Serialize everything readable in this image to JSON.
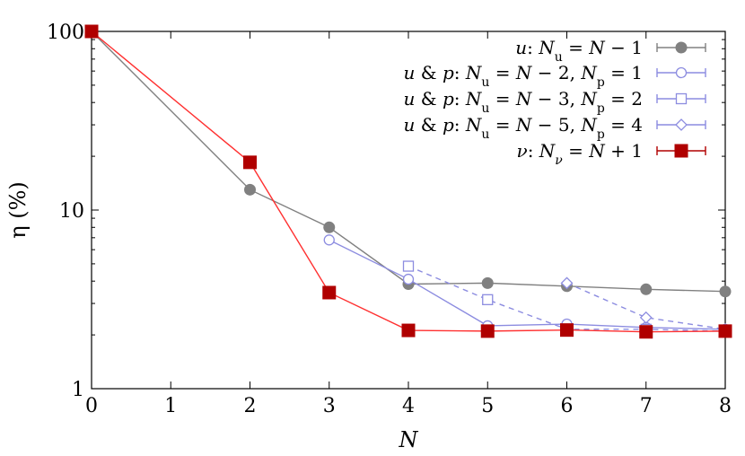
{
  "chart_data": {
    "type": "line",
    "xlabel": "N",
    "ylabel": "η (%)",
    "x_scale": "linear",
    "y_scale": "log",
    "xlim": [
      0,
      8
    ],
    "ylim": [
      1,
      100
    ],
    "x_ticks": [
      "0",
      "1",
      "2",
      "3",
      "4",
      "5",
      "6",
      "7",
      "8"
    ],
    "y_ticks": [
      "1",
      "10",
      "100"
    ],
    "grid": false,
    "legend_position": "top-right",
    "series": [
      {
        "name": "u: N_u = N − 1",
        "color": "#808080",
        "marker": "filled-circle",
        "dashed": false,
        "x": [
          0,
          2,
          3,
          4,
          5,
          6,
          7,
          8
        ],
        "y": [
          100,
          13,
          8.0,
          3.85,
          3.9,
          3.75,
          3.6,
          3.5
        ]
      },
      {
        "name": "u & p: N_u = N − 2, N_p = 1",
        "color": "#8c8ce0",
        "marker": "open-circle",
        "dashed": false,
        "x": [
          3,
          4,
          5,
          6,
          7,
          8
        ],
        "y": [
          6.8,
          4.1,
          2.25,
          2.3,
          2.2,
          2.15
        ]
      },
      {
        "name": "u & p: N_u = N − 3, N_p = 2",
        "color": "#8c8ce0",
        "marker": "open-square",
        "dashed": true,
        "x": [
          4,
          5,
          6,
          7,
          8
        ],
        "y": [
          4.85,
          3.15,
          2.15,
          2.15,
          2.1
        ]
      },
      {
        "name": "u & p: N_u = N − 5, N_p = 4",
        "color": "#8c8ce0",
        "marker": "open-diamond",
        "dashed": true,
        "x": [
          6,
          7,
          8
        ],
        "y": [
          3.9,
          2.5,
          2.15
        ]
      },
      {
        "name": "ν: N_ν = N + 1",
        "color": "#b00000",
        "line_color": "#ff3030",
        "marker": "filled-square",
        "dashed": false,
        "x": [
          0,
          2,
          3,
          4,
          5,
          6,
          7,
          8
        ],
        "y": [
          100,
          18.5,
          3.45,
          2.12,
          2.1,
          2.13,
          2.08,
          2.1
        ]
      }
    ]
  },
  "legend": {
    "rows": [
      {
        "parts": [
          [
            "u",
            true
          ],
          [
            ": ",
            false
          ],
          [
            "N",
            true
          ],
          [
            "u",
            false,
            "sub"
          ],
          [
            " = ",
            false
          ],
          [
            "N",
            true
          ],
          [
            " − 1",
            false
          ]
        ]
      },
      {
        "parts": [
          [
            "u",
            true
          ],
          [
            " & ",
            false
          ],
          [
            "p",
            true
          ],
          [
            ": ",
            false
          ],
          [
            "N",
            true
          ],
          [
            "u",
            false,
            "sub"
          ],
          [
            " = ",
            false
          ],
          [
            "N",
            true
          ],
          [
            " − 2, ",
            false
          ],
          [
            "N",
            true
          ],
          [
            "p",
            false,
            "sub"
          ],
          [
            " = 1",
            false
          ]
        ]
      },
      {
        "parts": [
          [
            "u",
            true
          ],
          [
            " & ",
            false
          ],
          [
            "p",
            true
          ],
          [
            ": ",
            false
          ],
          [
            "N",
            true
          ],
          [
            "u",
            false,
            "sub"
          ],
          [
            " = ",
            false
          ],
          [
            "N",
            true
          ],
          [
            " − 3, ",
            false
          ],
          [
            "N",
            true
          ],
          [
            "p",
            false,
            "sub"
          ],
          [
            " = 2",
            false
          ]
        ]
      },
      {
        "parts": [
          [
            "u",
            true
          ],
          [
            " & ",
            false
          ],
          [
            "p",
            true
          ],
          [
            ": ",
            false
          ],
          [
            "N",
            true
          ],
          [
            "u",
            false,
            "sub"
          ],
          [
            " = ",
            false
          ],
          [
            "N",
            true
          ],
          [
            " − 5, ",
            false
          ],
          [
            "N",
            true
          ],
          [
            "p",
            false,
            "sub"
          ],
          [
            " = 4",
            false
          ]
        ]
      },
      {
        "parts": [
          [
            "ν",
            true
          ],
          [
            ": ",
            false
          ],
          [
            "N",
            true
          ],
          [
            "ν",
            true,
            "sub"
          ],
          [
            " = ",
            false
          ],
          [
            "N",
            true
          ],
          [
            " + 1",
            false
          ]
        ]
      }
    ]
  }
}
